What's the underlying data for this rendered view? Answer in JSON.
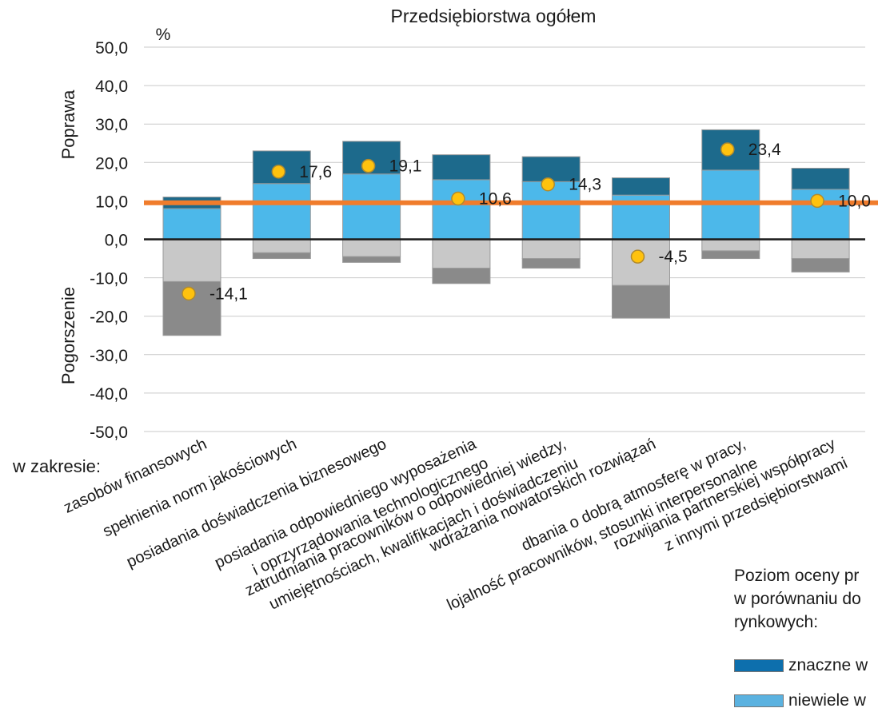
{
  "chart_data": {
    "type": "bar",
    "title_fragment": "Przedsiębiorstwa ogółem",
    "unit_label": "%",
    "ylabel_top": "Poprawa",
    "ylabel_bottom": "Pogorszenie",
    "ylim": [
      -50,
      50
    ],
    "yticks": [
      "50,0",
      "40,0",
      "30,0",
      "20,0",
      "10,0",
      "0,0",
      "-10,0",
      "-20,0",
      "-30,0",
      "-40,0",
      "-50,0"
    ],
    "x_prefix": "w zakresie:",
    "categories": [
      [
        "zasobów finansowych"
      ],
      [
        "spełnienia norm jakościowych"
      ],
      [
        "posiadania doświadczenia biznesowego"
      ],
      [
        "posiadania odpowiedniego wyposażenia",
        "i oprzyrządowania technologicznego"
      ],
      [
        "zatrudniania pracowników o odpowiedniej wiedzy,",
        "umiejętnościach, kwalifikacjach i doświadczeniu"
      ],
      [
        "wdrażania nowatorskich rozwiązań"
      ],
      [
        "dbania o dobrą atmosferę w pracy,",
        "lojalność pracowników, stosunki interpersonalne"
      ],
      [
        "rozwijania partnerskiej współpracy",
        "z innymi przedsiębiorstwami"
      ]
    ],
    "series": [
      {
        "name": "niewiele w",
        "color": "#4cb8ea",
        "values": [
          8,
          14.5,
          17,
          15.5,
          15,
          11.5,
          18,
          13
        ]
      },
      {
        "name": "znaczne w",
        "color": "#1d6a8c",
        "values": [
          3,
          8.5,
          8.5,
          6.5,
          6.5,
          4.5,
          10.5,
          5.5
        ]
      },
      {
        "color": "#c8c8c8",
        "values": [
          -11,
          -3.5,
          -4.5,
          -7.5,
          -5,
          -12,
          -3,
          -5
        ]
      },
      {
        "color": "#8a8a8a",
        "values": [
          -14,
          -1.5,
          -1.5,
          -4,
          -2.5,
          -8.5,
          -2,
          -3.5
        ]
      }
    ],
    "balance": {
      "color": "#ffc20e",
      "values": [
        -14.1,
        17.6,
        19.1,
        10.6,
        14.3,
        -4.5,
        23.4,
        10.0
      ],
      "labels": [
        "-14,1",
        "17,6",
        "19,1",
        "10,6",
        "14,3",
        "-4,5",
        "23,4",
        "10,0"
      ]
    },
    "reference_line": {
      "value": 9.5,
      "color": "#f07c2c"
    },
    "grid": true,
    "legend_placement": "bottom-right"
  },
  "legend": {
    "title_lines": [
      "Poziom oceny pr",
      "w porównaniu do",
      "rynkowych:"
    ],
    "items": [
      {
        "label": "znaczne w",
        "color": "#0d6fad"
      },
      {
        "label": "niewiele w",
        "color": "#5bb2e0"
      }
    ]
  }
}
